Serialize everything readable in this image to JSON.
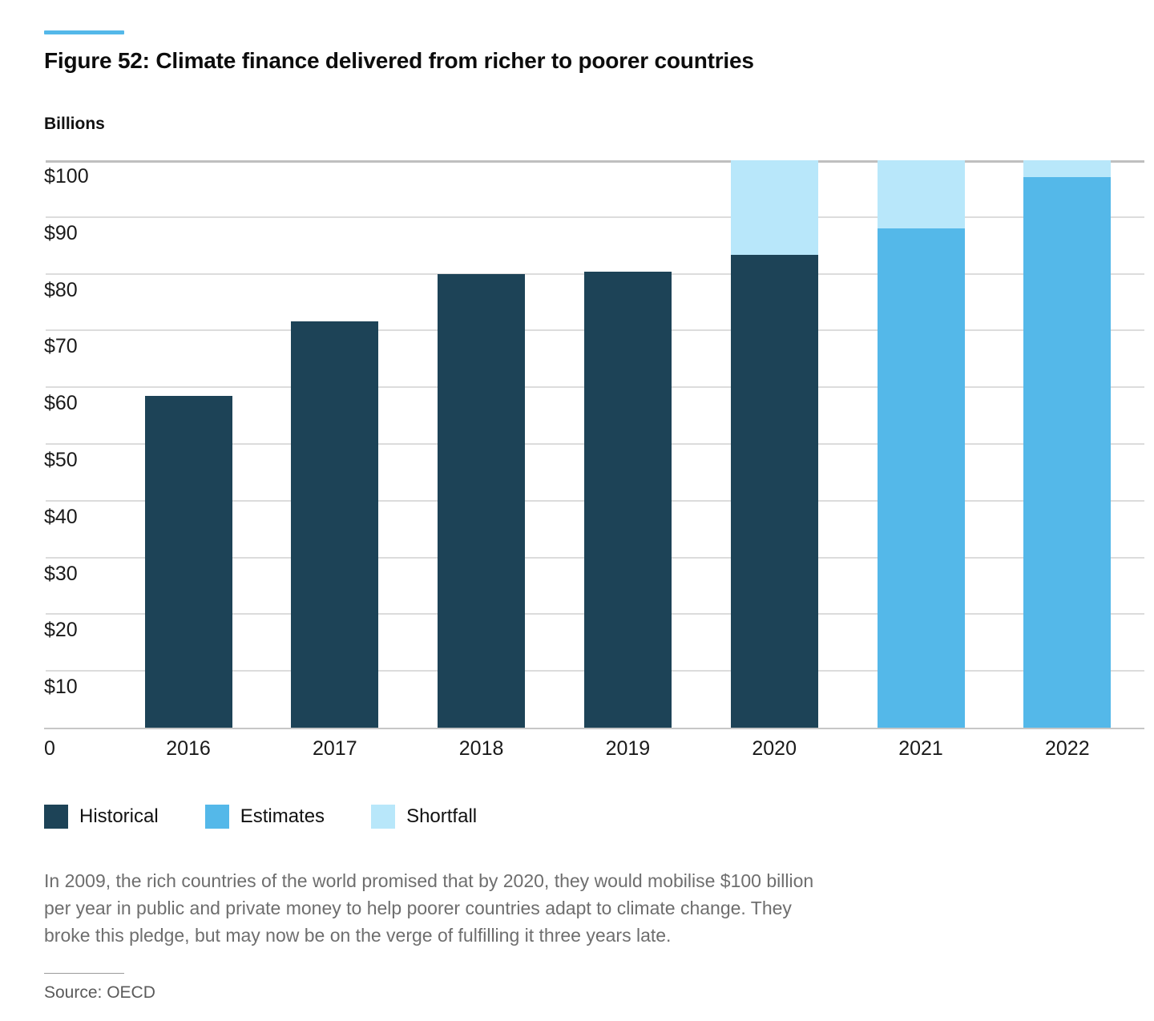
{
  "figure": {
    "title": "Figure 52: Climate finance delivered from richer to poorer countries",
    "axis_unit_label": "Billions",
    "caption": "In 2009, the rich countries of the world promised that by 2020, they would mobilise $100 billion per year in public and private money to help poorer countries adapt to climate change. They broke this pledge, but may now be on the verge of fulfilling it three years late.",
    "source": "Source: OECD"
  },
  "colors": {
    "accent": "#54b8e9",
    "historical": "#1d4357",
    "estimates": "#54b8e9",
    "shortfall": "#b8e7fa",
    "gridline": "#dcdcdc",
    "gridline_top": "#bfbfbf",
    "caption_text": "#6e6e6e"
  },
  "chart_data": {
    "type": "bar",
    "stacked": true,
    "title": "Figure 52: Climate finance delivered from richer to poorer countries",
    "ylabel": "Billions (USD)",
    "xlabel": "",
    "ylim": [
      0,
      100
    ],
    "grid": "horizontal",
    "legend_position": "bottom",
    "categories": [
      "2016",
      "2017",
      "2018",
      "2019",
      "2020",
      "2021",
      "2022"
    ],
    "series": [
      {
        "name": "Historical",
        "color": "#1d4357",
        "values": [
          58.5,
          71.6,
          79.9,
          80.4,
          83.3,
          null,
          null
        ]
      },
      {
        "name": "Estimates",
        "color": "#54b8e9",
        "values": [
          null,
          null,
          null,
          null,
          null,
          88,
          97
        ]
      },
      {
        "name": "Shortfall",
        "color": "#b8e7fa",
        "values": [
          null,
          null,
          null,
          null,
          16.7,
          12,
          3
        ]
      }
    ],
    "totals": [
      58.5,
      71.6,
      79.9,
      80.4,
      100,
      100,
      100
    ],
    "ytick_labels": [
      "$100",
      "$90",
      "$80",
      "$70",
      "$60",
      "$50",
      "$40",
      "$30",
      "$20",
      "$10"
    ],
    "ytick_values": [
      100,
      90,
      80,
      70,
      60,
      50,
      40,
      30,
      20,
      10
    ],
    "origin_label": "0"
  }
}
